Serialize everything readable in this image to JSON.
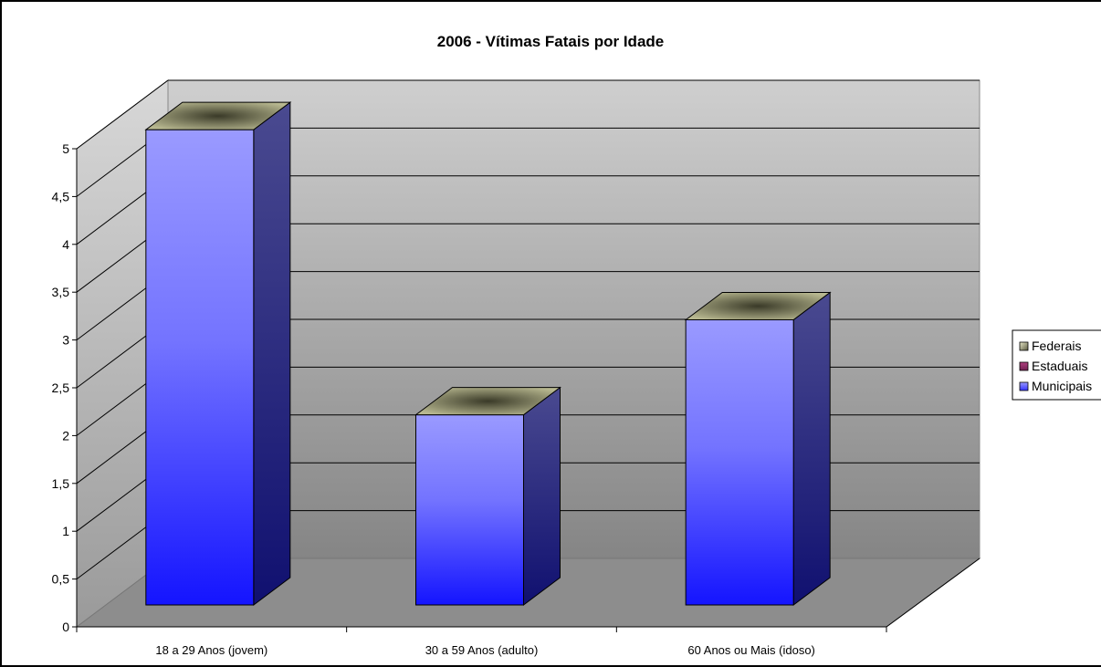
{
  "chart_data": {
    "type": "bar",
    "title": "2006 - Vítimas Fatais por Idade",
    "categories": [
      "18 a 29 Anos (jovem)",
      "30 a 59 Anos (adulto)",
      "60 Anos ou Mais (idoso)"
    ],
    "series": [
      {
        "name": "Federais",
        "values": [
          0,
          0,
          0
        ],
        "color": "#c8c8a0"
      },
      {
        "name": "Estaduais",
        "values": [
          0,
          0,
          0
        ],
        "color": "#993366"
      },
      {
        "name": "Municipais",
        "values": [
          5,
          2,
          3
        ],
        "color": "#6666ff"
      }
    ],
    "yticks": [
      "0",
      "0,5",
      "1",
      "1,5",
      "2",
      "2,5",
      "3",
      "3,5",
      "4",
      "4,5",
      "5"
    ],
    "ylim": [
      0,
      5
    ],
    "grid": true,
    "legend": "right",
    "style": "3d-column"
  },
  "colors": {
    "wall_top": "#c6c6c6",
    "wall_bottom": "#8a8a8a",
    "floor": "#8c8c8c",
    "bar_front_top": "#9999ff",
    "bar_front_bottom": "#1a1aff",
    "bar_side": "#2a2a80",
    "bar_cap": "#4a4a30"
  }
}
